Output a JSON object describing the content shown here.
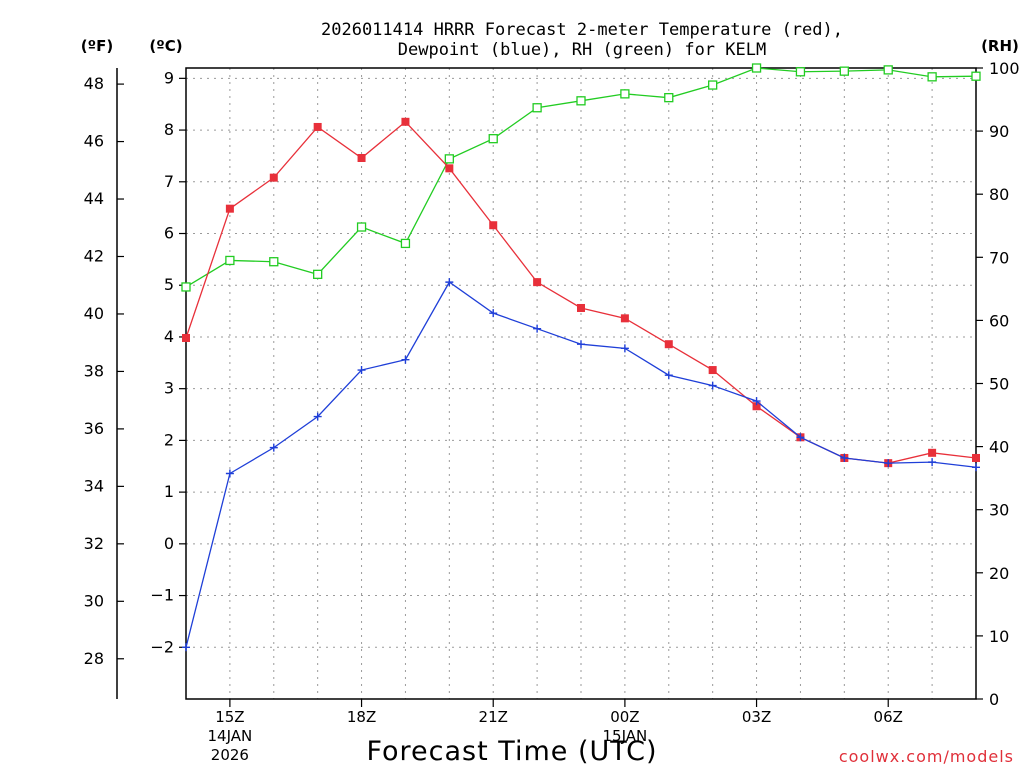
{
  "chart_data": {
    "type": "line",
    "title_line1": "2026011414 HRRR Forecast 2-meter Temperature (red),",
    "title_line2": "Dewpoint (blue), RH (green) for KELM",
    "xlabel": "Forecast Time (UTC)",
    "credit": "coolwx.com/models",
    "units": {
      "fahrenheit": "(ºF)",
      "celsius": "(ºC)",
      "rh": "(RH)"
    },
    "x_hours": [
      14,
      15,
      16,
      17,
      18,
      19,
      20,
      21,
      22,
      23,
      24,
      25,
      26,
      27,
      28,
      29,
      30,
      31,
      32
    ],
    "x_range": [
      14,
      32
    ],
    "x_ticks": [
      {
        "hour": 15,
        "label": "15Z",
        "sub1": "14JAN",
        "sub2": "2026"
      },
      {
        "hour": 18,
        "label": "18Z"
      },
      {
        "hour": 21,
        "label": "21Z"
      },
      {
        "hour": 24,
        "label": "00Z",
        "sub1": "15JAN"
      },
      {
        "hour": 27,
        "label": "03Z"
      },
      {
        "hour": 30,
        "label": "06Z"
      }
    ],
    "celsius_axis": {
      "range": [
        -3.0,
        9.2
      ],
      "ticks": [
        -2,
        -1,
        0,
        1,
        2,
        3,
        4,
        5,
        6,
        7,
        8,
        9
      ],
      "tick_labels": [
        "−2",
        "−1",
        "0",
        "1",
        "2",
        "3",
        "4",
        "5",
        "6",
        "7",
        "8",
        "9"
      ]
    },
    "fahrenheit_axis": {
      "ticks": [
        28,
        30,
        32,
        34,
        36,
        38,
        40,
        42,
        44,
        46,
        48
      ],
      "tick_labels": [
        "28",
        "30",
        "32",
        "34",
        "36",
        "38",
        "40",
        "42",
        "44",
        "46",
        "48"
      ]
    },
    "rh_axis": {
      "range": [
        0,
        100
      ],
      "ticks": [
        0,
        10,
        20,
        30,
        40,
        50,
        60,
        70,
        80,
        90,
        100
      ],
      "tick_labels": [
        "0",
        "10",
        "20",
        "30",
        "40",
        "50",
        "60",
        "70",
        "80",
        "90",
        "100"
      ]
    },
    "series": [
      {
        "name": "Temperature",
        "unit": "C",
        "color": "#e8303a",
        "marker": "filled-square",
        "values": [
          3.98,
          6.48,
          7.08,
          8.06,
          7.46,
          8.16,
          7.26,
          6.16,
          5.06,
          4.56,
          4.36,
          3.86,
          3.36,
          2.66,
          2.06,
          1.66,
          1.56,
          1.76,
          1.66
        ]
      },
      {
        "name": "Dewpoint",
        "unit": "C",
        "color": "#1f3fd8",
        "marker": "plus",
        "values": [
          -2.0,
          1.36,
          1.86,
          2.46,
          3.36,
          3.56,
          5.06,
          4.46,
          4.16,
          3.86,
          3.78,
          3.26,
          3.06,
          2.76,
          2.06,
          1.66,
          1.56,
          1.58,
          1.48
        ]
      },
      {
        "name": "RH",
        "unit": "%",
        "color": "#22cc22",
        "marker": "open-square",
        "values": [
          65.3,
          69.5,
          69.3,
          67.3,
          74.8,
          72.2,
          85.6,
          88.8,
          93.7,
          94.8,
          95.9,
          95.3,
          97.3,
          100.0,
          99.4,
          99.5,
          99.7,
          98.6,
          98.7
        ]
      }
    ]
  }
}
